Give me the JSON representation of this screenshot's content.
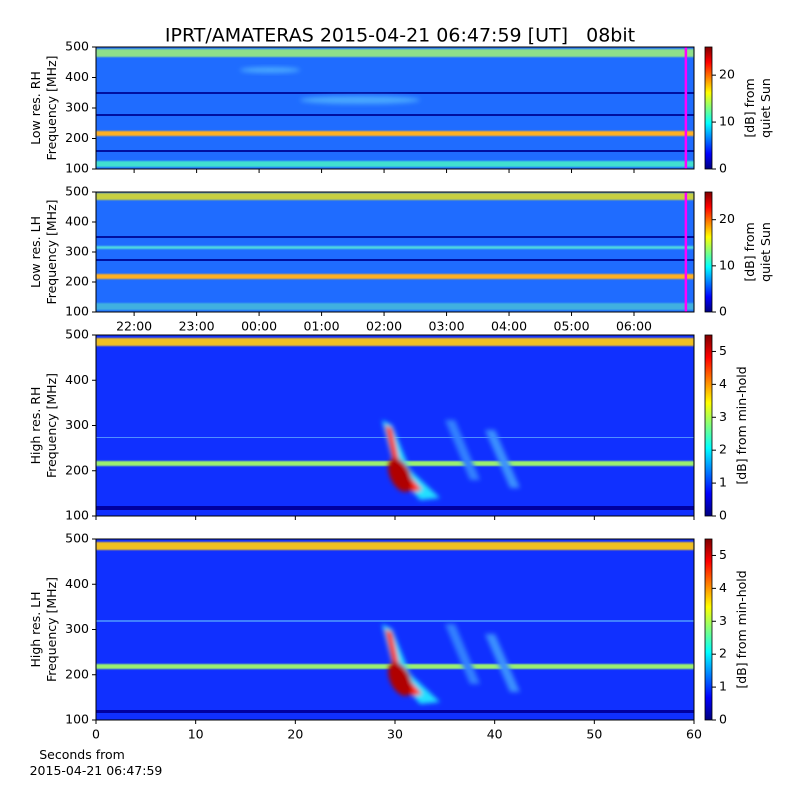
{
  "title": "IPRT/AMATERAS 2015-04-21 06:47:59 [UT]   08bit",
  "chart_data": [
    {
      "type": "heatmap",
      "ylabel": [
        "Low res. RH",
        "Frequency [MHz]"
      ],
      "ylim": [
        100,
        500
      ],
      "yticks": [
        100,
        200,
        300,
        400,
        500
      ],
      "xlim": [
        21.39,
        30.96
      ],
      "vline": {
        "x": 30.83,
        "color": "#ff00ff"
      },
      "colormap": "jet",
      "clabel": [
        "[dB] from",
        "quiet Sun"
      ],
      "clim": [
        0,
        26
      ],
      "cticks": [
        0,
        10,
        20
      ]
    },
    {
      "type": "heatmap",
      "ylabel": [
        "Low res. LH",
        "Frequency [MHz]"
      ],
      "ylim": [
        100,
        500
      ],
      "yticks": [
        100,
        200,
        300,
        400,
        500
      ],
      "xlim": [
        21.39,
        30.96
      ],
      "vline": {
        "x": 30.83,
        "color": "#ff00ff"
      },
      "xticks": [
        {
          "value": 22,
          "label": "22:00"
        },
        {
          "value": 23,
          "label": "23:00"
        },
        {
          "value": 24,
          "label": "00:00"
        },
        {
          "value": 25,
          "label": "01:00"
        },
        {
          "value": 26,
          "label": "02:00"
        },
        {
          "value": 27,
          "label": "03:00"
        },
        {
          "value": 28,
          "label": "04:00"
        },
        {
          "value": 29,
          "label": "05:00"
        },
        {
          "value": 30,
          "label": "06:00"
        }
      ],
      "colormap": "jet",
      "clabel": [
        "[dB] from",
        "quiet Sun"
      ],
      "clim": [
        0,
        26
      ],
      "cticks": [
        0,
        10,
        20
      ]
    },
    {
      "type": "heatmap",
      "ylabel": [
        "High res. RH",
        "Frequency [MHz]"
      ],
      "ylim": [
        100,
        500
      ],
      "yticks": [
        100,
        200,
        300,
        400,
        500
      ],
      "xlim": [
        0,
        60
      ],
      "colormap": "jet",
      "clabel": [
        "[dB] from min-hold"
      ],
      "clim": [
        0,
        5.5
      ],
      "cticks": [
        0,
        1,
        2,
        3,
        4,
        5
      ]
    },
    {
      "type": "heatmap",
      "ylabel": [
        "High res. LH",
        "Frequency [MHz]"
      ],
      "ylim": [
        100,
        500
      ],
      "yticks": [
        100,
        200,
        300,
        400,
        500
      ],
      "xlim": [
        0,
        60
      ],
      "xticks": [
        0,
        10,
        20,
        30,
        40,
        50,
        60
      ],
      "xlabel": [
        "Seconds from",
        "2015-04-21 06:47:59"
      ],
      "colormap": "jet",
      "clabel": [
        "[dB] from min-hold"
      ],
      "clim": [
        0,
        5.5
      ],
      "cticks": [
        0,
        1,
        2,
        3,
        4,
        5
      ]
    }
  ]
}
